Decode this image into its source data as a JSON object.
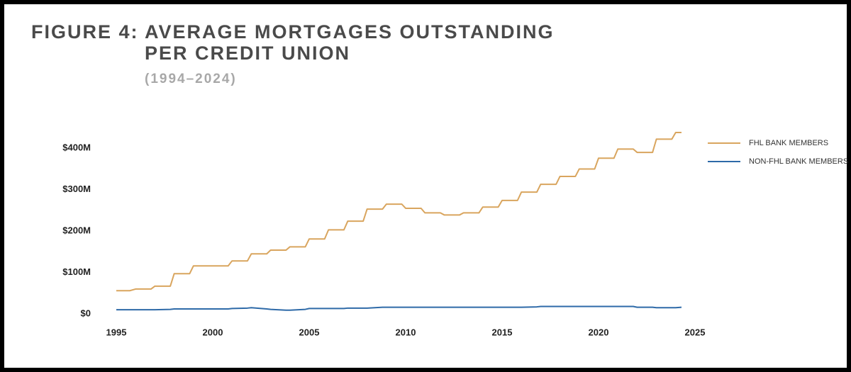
{
  "chart_data": {
    "type": "line",
    "title": [
      "FIGURE 4: AVERAGE MORTGAGES OUTSTANDING",
      "PER CREDIT UNION"
    ],
    "subtitle": "(1994–2024)",
    "x": [
      1995,
      1995.7,
      1996,
      1996.8,
      1997,
      1997.8,
      1998,
      1998.8,
      1999,
      2000.8,
      2001,
      2001.8,
      2002,
      2002.8,
      2003,
      2003.8,
      2004,
      2004.8,
      2005,
      2005.8,
      2006,
      2006.8,
      2007,
      2007.8,
      2008,
      2008.8,
      2009,
      2009.8,
      2010,
      2010.8,
      2011,
      2011.8,
      2012,
      2012.8,
      2013,
      2013.8,
      2014,
      2014.8,
      2015,
      2015.8,
      2016,
      2016.8,
      2017,
      2017.8,
      2018,
      2018.8,
      2019,
      2019.8,
      2020,
      2020.8,
      2021,
      2021.8,
      2022,
      2022.8,
      2023,
      2023.8,
      2024,
      2024.3
    ],
    "series": [
      {
        "name": "FHL BANK MEMBERS",
        "color": "#d9a55e",
        "values": [
          56,
          56,
          60,
          60,
          67,
          67,
          97,
          97,
          116,
          116,
          128,
          128,
          145,
          145,
          154,
          154,
          162,
          162,
          181,
          181,
          203,
          203,
          224,
          224,
          253,
          253,
          265,
          265,
          255,
          255,
          244,
          244,
          239,
          239,
          244,
          244,
          258,
          258,
          274,
          274,
          294,
          294,
          313,
          313,
          332,
          332,
          350,
          350,
          376,
          376,
          398,
          398,
          390,
          390,
          422,
          422,
          438,
          438
        ]
      },
      {
        "name": "NON-FHL BANK MEMBERS",
        "color": "#2e6aa8",
        "values": [
          10,
          10,
          10,
          10,
          10,
          11,
          12,
          12,
          12,
          12,
          13,
          14,
          15,
          12,
          11,
          9,
          9,
          11,
          13,
          13,
          13,
          13,
          14,
          14,
          14,
          16,
          16,
          16,
          16,
          16,
          16,
          16,
          16,
          16,
          16,
          16,
          16,
          16,
          16,
          16,
          16,
          17,
          18,
          18,
          18,
          18,
          18,
          18,
          18,
          18,
          18,
          18,
          16,
          16,
          15,
          15,
          15,
          16
        ]
      }
    ],
    "xlim": [
      1995,
      2025
    ],
    "xticks": [
      1995,
      2000,
      2005,
      2010,
      2015,
      2020,
      2025
    ],
    "ylim": [
      0,
      450
    ],
    "yticks": [
      {
        "value": 0,
        "label": "$0"
      },
      {
        "value": 100,
        "label": "$100M"
      },
      {
        "value": 200,
        "label": "$200M"
      },
      {
        "value": 300,
        "label": "$300M"
      },
      {
        "value": 400,
        "label": "$400M"
      }
    ],
    "grid": false,
    "legend": "top-right"
  }
}
